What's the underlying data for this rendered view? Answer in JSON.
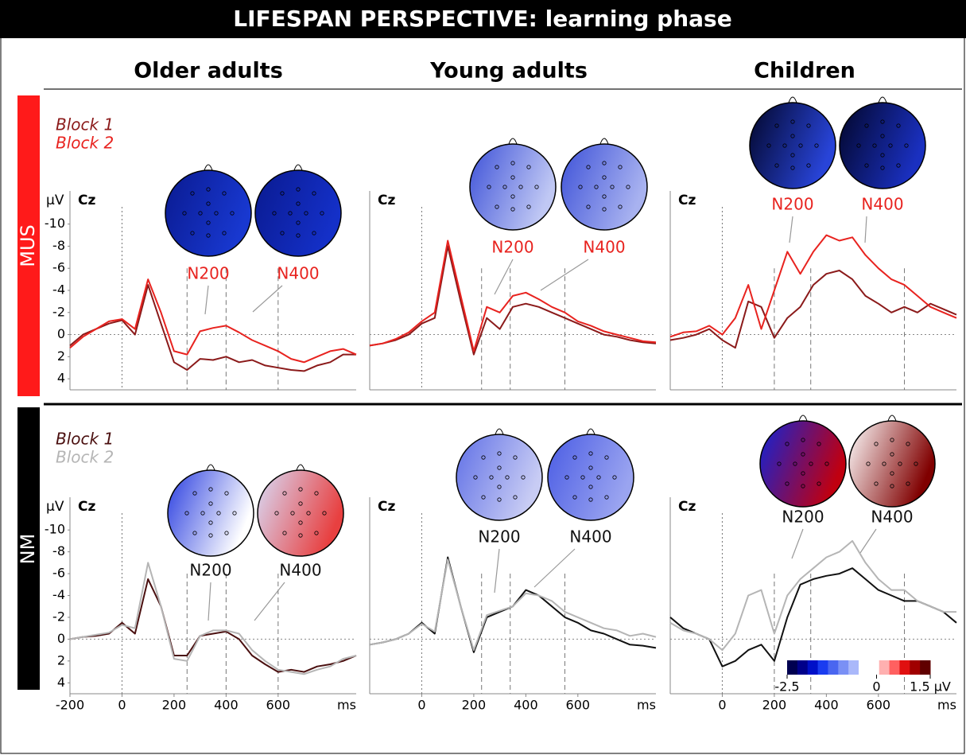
{
  "title": "LIFESPAN PERSPECTIVE: learning phase",
  "columns": [
    "Older adults",
    "Young adults",
    "Children"
  ],
  "rows": [
    "MUS",
    "NM"
  ],
  "chart_data": [
    {
      "type": "line",
      "label": "Cz",
      "ylabel": "μV",
      "annotations": [
        "N200",
        "N400"
      ],
      "xlim": [
        -200,
        900
      ],
      "ylim": [
        5,
        -13
      ],
      "yticks": [
        -10,
        -8,
        -6,
        -4,
        -2,
        0,
        2,
        4
      ],
      "vlines": [
        0,
        250,
        400,
        600
      ],
      "x": [
        -200,
        -150,
        -100,
        -50,
        0,
        50,
        100,
        150,
        200,
        250,
        300,
        350,
        400,
        450,
        500,
        550,
        600,
        650,
        700,
        750,
        800,
        850,
        900
      ],
      "series": [
        {
          "name": "Block 1",
          "color": "#8b1a1a",
          "values": [
            1,
            0,
            -0.5,
            -1,
            -1.3,
            0,
            -4.5,
            -1,
            2.5,
            3.2,
            2.2,
            2.3,
            2,
            2.5,
            2.3,
            2.8,
            3,
            3.2,
            3.3,
            2.8,
            2.5,
            1.8,
            1.8
          ]
        },
        {
          "name": "Block 2",
          "color": "#e8231f",
          "values": [
            1.2,
            0.2,
            -0.5,
            -1.2,
            -1.4,
            -0.5,
            -5,
            -2,
            1.5,
            1.8,
            -0.3,
            -0.6,
            -0.8,
            -0.2,
            0.5,
            1,
            1.5,
            2.2,
            2.5,
            2,
            1.5,
            1.3,
            1.8
          ]
        }
      ]
    },
    {
      "type": "line",
      "label": "Cz",
      "annotations": [
        "N200",
        "N400"
      ],
      "xlim": [
        -200,
        900
      ],
      "ylim": [
        5,
        -13
      ],
      "vlines": [
        0,
        230,
        340,
        550
      ],
      "x": [
        -200,
        -150,
        -100,
        -50,
        0,
        50,
        100,
        150,
        200,
        250,
        300,
        350,
        400,
        450,
        500,
        550,
        600,
        650,
        700,
        750,
        800,
        850,
        900
      ],
      "series": [
        {
          "color": "#8b1a1a",
          "values": [
            1,
            0.8,
            0.5,
            0,
            -1,
            -1.5,
            -8,
            -3,
            1.8,
            -1.5,
            -0.5,
            -2.5,
            -2.8,
            -2.5,
            -2,
            -1.5,
            -1,
            -0.5,
            0,
            0.2,
            0.5,
            0.7,
            0.8
          ]
        },
        {
          "color": "#e8231f",
          "values": [
            1,
            0.8,
            0.4,
            -0.2,
            -1.2,
            -2,
            -8.5,
            -3.5,
            1.5,
            -2.5,
            -2,
            -3.5,
            -3.8,
            -3.2,
            -2.5,
            -2,
            -1.2,
            -0.8,
            -0.3,
            0,
            0.3,
            0.6,
            0.7
          ]
        }
      ]
    },
    {
      "type": "line",
      "label": "Cz",
      "annotations": [
        "N200",
        "N400"
      ],
      "xlim": [
        -200,
        900
      ],
      "ylim": [
        5,
        -13
      ],
      "vlines": [
        0,
        200,
        340,
        700
      ],
      "x": [
        -200,
        -150,
        -100,
        -50,
        0,
        50,
        100,
        150,
        200,
        250,
        300,
        350,
        400,
        450,
        500,
        550,
        600,
        650,
        700,
        750,
        800,
        850,
        900
      ],
      "series": [
        {
          "color": "#8b1a1a",
          "values": [
            0.5,
            0.3,
            0,
            -0.5,
            0.5,
            1.2,
            -3,
            -2.5,
            0.3,
            -1.5,
            -2.5,
            -4.5,
            -5.5,
            -5.8,
            -5,
            -3.5,
            -2.8,
            -2,
            -2.5,
            -2,
            -2.8,
            -2.3,
            -1.8
          ]
        },
        {
          "color": "#e8231f",
          "values": [
            0.2,
            -0.2,
            -0.3,
            -0.8,
            0,
            -1.5,
            -4.5,
            -0.5,
            -4,
            -7.5,
            -5.5,
            -7.5,
            -9,
            -8.5,
            -8.8,
            -7.2,
            -6,
            -5,
            -4.5,
            -3.5,
            -2.5,
            -2,
            -1.5
          ]
        }
      ]
    },
    {
      "type": "line",
      "label": "Cz",
      "ylabel": "μV",
      "xlabel": "ms",
      "annotations": [
        "N200",
        "N400"
      ],
      "xlim": [
        -200,
        900
      ],
      "ylim": [
        5,
        -13
      ],
      "yticks": [
        -10,
        -8,
        -6,
        -4,
        -2,
        0,
        2,
        4
      ],
      "xticks": [
        -200,
        0,
        200,
        400,
        600
      ],
      "vlines": [
        0,
        250,
        400,
        600
      ],
      "x": [
        -200,
        -150,
        -100,
        -50,
        0,
        50,
        100,
        150,
        200,
        250,
        300,
        350,
        400,
        450,
        500,
        550,
        600,
        650,
        700,
        750,
        800,
        850,
        900
      ],
      "series": [
        {
          "name": "Block 1",
          "color": "#4a0f0f",
          "values": [
            0,
            -0.2,
            -0.3,
            -0.5,
            -1.5,
            -0.5,
            -5.5,
            -3,
            1.5,
            1.5,
            -0.3,
            -0.5,
            -0.7,
            0,
            1.5,
            2.3,
            3,
            2.8,
            3,
            2.5,
            2.3,
            2,
            1.5
          ]
        },
        {
          "name": "Block 2",
          "color": "#b5b5b5",
          "values": [
            0,
            -0.2,
            -0.4,
            -0.6,
            -1.3,
            -1,
            -7,
            -3,
            1.8,
            2,
            -0.3,
            -0.8,
            -0.8,
            -0.5,
            1,
            2,
            2.8,
            3,
            3.2,
            2.8,
            2.5,
            1.8,
            1.5
          ]
        }
      ]
    },
    {
      "type": "line",
      "label": "Cz",
      "xlabel": "ms",
      "annotations": [
        "N200",
        "N400"
      ],
      "xlim": [
        -200,
        900
      ],
      "ylim": [
        5,
        -13
      ],
      "xticks": [
        0,
        200,
        400,
        600
      ],
      "vlines": [
        0,
        230,
        340,
        550
      ],
      "x": [
        -200,
        -150,
        -100,
        -50,
        0,
        50,
        100,
        150,
        200,
        250,
        300,
        350,
        400,
        450,
        500,
        550,
        600,
        650,
        700,
        750,
        800,
        850,
        900
      ],
      "series": [
        {
          "color": "#111111",
          "values": [
            0.5,
            0.3,
            0,
            -0.5,
            -1.5,
            -0.5,
            -7.5,
            -3,
            1.2,
            -2,
            -2.5,
            -3,
            -4.5,
            -4,
            -3,
            -2,
            -1.5,
            -0.8,
            -0.5,
            0,
            0.5,
            0.6,
            0.8
          ]
        },
        {
          "color": "#b5b5b5",
          "values": [
            0.5,
            0.3,
            0,
            -0.5,
            -1.4,
            -0.7,
            -7.3,
            -3,
            1,
            -2.2,
            -2.6,
            -3,
            -4.2,
            -4,
            -3.5,
            -2.5,
            -2,
            -1.5,
            -1,
            -0.8,
            -0.3,
            -0.5,
            -0.2
          ]
        }
      ]
    },
    {
      "type": "line",
      "label": "Cz",
      "xlabel": "ms",
      "annotations": [
        "N200",
        "N400"
      ],
      "xlim": [
        -200,
        900
      ],
      "ylim": [
        5,
        -13
      ],
      "xticks": [
        0,
        200,
        400,
        600
      ],
      "vlines": [
        0,
        200,
        340,
        700
      ],
      "x": [
        -200,
        -150,
        -100,
        -50,
        0,
        50,
        100,
        150,
        200,
        250,
        300,
        350,
        400,
        450,
        500,
        550,
        600,
        650,
        700,
        750,
        800,
        850,
        900
      ],
      "series": [
        {
          "color": "#111111",
          "values": [
            -2,
            -1,
            -0.5,
            0,
            2.5,
            2,
            1,
            0.5,
            2,
            -2,
            -5,
            -5.5,
            -5.8,
            -6,
            -6.5,
            -5.5,
            -4.5,
            -4,
            -3.5,
            -3.5,
            -3,
            -2.5,
            -1.5
          ]
        },
        {
          "color": "#b5b5b5",
          "values": [
            -1.5,
            -0.8,
            -0.5,
            0,
            1,
            -0.5,
            -4,
            -4.5,
            -0.5,
            -4,
            -5.5,
            -6.5,
            -7.5,
            -8,
            -9,
            -7,
            -5.5,
            -4.5,
            -4.5,
            -3.5,
            -3,
            -2.5,
            -2.5
          ]
        }
      ]
    }
  ],
  "colorbar": {
    "lim": [
      -2.5,
      1.5
    ],
    "ticks": [
      -2.5,
      0,
      {
        "value": 1.5,
        "label": "1.5 µV"
      }
    ],
    "colors": [
      "#000050",
      "#00008a",
      "#0010c8",
      "#1a3cf0",
      "#4a66f0",
      "#7a90f5",
      "#aab8fa",
      "#ffffff",
      "#ffffff",
      "#ffb0b0",
      "#ff6060",
      "#e01010",
      "#a00000",
      "#600000"
    ]
  }
}
